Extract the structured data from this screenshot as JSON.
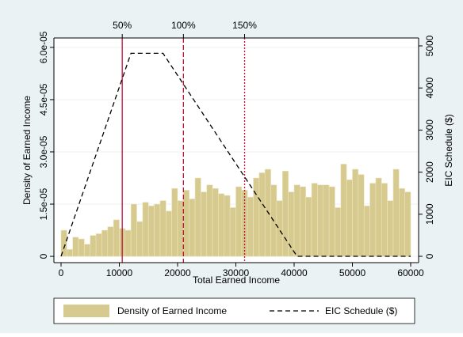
{
  "chart_data": {
    "type": "histogram",
    "x_label": "Total Earned Income",
    "y_label": "Density of Earned Income",
    "y2_label": "EIC Schedule ($)",
    "bins": [
      0,
      1000,
      2000,
      3000,
      4000,
      5000,
      6000,
      7000,
      8000,
      9000,
      10000,
      11000,
      12000,
      13000,
      14000,
      15000,
      16000,
      17000,
      18000,
      19000,
      20000,
      21000,
      22000,
      23000,
      24000,
      25000,
      26000,
      27000,
      28000,
      29000,
      30000,
      31000,
      32000,
      33000,
      34000,
      35000,
      36000,
      37000,
      38000,
      39000,
      40000,
      41000,
      42000,
      43000,
      44000,
      45000,
      46000,
      47000,
      48000,
      49000,
      50000,
      51000,
      52000,
      53000,
      54000,
      55000,
      56000,
      57000,
      58000,
      59000,
      60000
    ],
    "series": [
      {
        "name": "Density of Earned Income",
        "type": "histogram",
        "color": "#d6ca8e",
        "values": [
          7.5e-06,
          2e-06,
          5.5e-06,
          5e-06,
          3.5e-06,
          6e-06,
          6.5e-06,
          7.5e-06,
          8.5e-06,
          1.05e-05,
          8e-06,
          7.5e-06,
          1.5e-05,
          1e-05,
          1.55e-05,
          1.45e-05,
          1.5e-05,
          1.6e-05,
          1.3e-05,
          1.95e-05,
          1.6e-05,
          1.9e-05,
          1.65e-05,
          2.25e-05,
          1.85e-05,
          2.05e-05,
          1.95e-05,
          1.8e-05,
          1.75e-05,
          1.4e-05,
          2e-05,
          1.9e-05,
          1.7e-05,
          2.25e-05,
          2.4e-05,
          2.5e-05,
          2.05e-05,
          1.6e-05,
          2.45e-05,
          1.85e-05,
          2.05e-05,
          2e-05,
          1.7e-05,
          2.1e-05,
          2.05e-05,
          2.05e-05,
          2e-05,
          1.4e-05,
          2.65e-05,
          2.2e-05,
          2.5e-05,
          2.35e-05,
          1.45e-05,
          2.1e-05,
          2.25e-05,
          2.1e-05,
          1.6e-05,
          2.5e-05,
          1.95e-05,
          1.85e-05
        ]
      },
      {
        "name": "EIC Schedule ($)",
        "type": "line",
        "axis": "y2",
        "color": "#000000",
        "dash": true,
        "x": [
          0,
          12000,
          17500,
          40500,
          60000
        ],
        "values": [
          0,
          4824,
          4824,
          0,
          0
        ]
      }
    ],
    "reference_lines": [
      {
        "x": 10500,
        "label": "50%",
        "color": "#c0103a",
        "style": "solid"
      },
      {
        "x": 21000,
        "label": "100%",
        "color": "#c0103a",
        "style": "dashed"
      },
      {
        "x": 31500,
        "label": "150%",
        "color": "#c0103a",
        "style": "dotted"
      }
    ],
    "xlim": [
      -1224,
      61360
    ],
    "xticks": [
      0,
      10000,
      20000,
      30000,
      40000,
      50000,
      60000
    ],
    "ylim": [
      -1.8e-06,
      6.27e-05
    ],
    "yticks": [
      0,
      {
        "value": 1.5e-05,
        "label": "1.5e-05"
      },
      {
        "value": 3e-05,
        "label": "3.0e-05"
      },
      {
        "value": 4.5e-05,
        "label": "4.5e-05"
      },
      {
        "value": 6e-05,
        "label": "6.0e-05"
      }
    ],
    "y2lim": [
      -150,
      5188
    ],
    "y2ticks": [
      0,
      1000,
      2000,
      3000,
      4000,
      5000
    ],
    "grid": true,
    "legend": "bottom"
  }
}
